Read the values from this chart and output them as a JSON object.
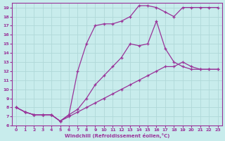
{
  "xlabel": "Windchill (Refroidissement éolien,°C)",
  "xlim": [
    -0.5,
    23.5
  ],
  "ylim": [
    6,
    19.5
  ],
  "xticks": [
    0,
    1,
    2,
    3,
    4,
    5,
    6,
    7,
    8,
    9,
    10,
    11,
    12,
    13,
    14,
    15,
    16,
    17,
    18,
    19,
    20,
    21,
    22,
    23
  ],
  "yticks": [
    6,
    7,
    8,
    9,
    10,
    11,
    12,
    13,
    14,
    15,
    16,
    17,
    18,
    19
  ],
  "bg_color": "#c8ecec",
  "grid_color": "#b0d8d8",
  "line_color": "#993399",
  "line1_x": [
    0,
    1,
    2,
    3,
    4,
    5,
    6,
    7,
    8,
    9,
    10,
    11,
    12,
    13,
    14,
    15,
    16,
    17,
    18,
    19,
    20,
    21,
    22,
    23
  ],
  "line1_y": [
    8,
    7.5,
    7.2,
    7.2,
    7.2,
    6.5,
    7.0,
    7.5,
    8.0,
    8.5,
    9.0,
    9.5,
    10.0,
    10.5,
    11.0,
    11.5,
    12.0,
    12.5,
    12.5,
    13.0,
    12.5,
    12.2,
    12.2,
    12.2
  ],
  "line2_x": [
    0,
    1,
    2,
    3,
    4,
    5,
    6,
    7,
    8,
    9,
    10,
    11,
    12,
    13,
    14,
    15,
    16,
    17,
    18,
    19,
    20,
    21,
    22,
    23
  ],
  "line2_y": [
    8,
    7.5,
    7.2,
    7.2,
    7.2,
    6.5,
    7.2,
    7.8,
    9.0,
    10.5,
    11.5,
    12.5,
    13.5,
    15.0,
    14.8,
    15.0,
    17.5,
    14.5,
    13.0,
    12.5,
    12.2,
    12.2,
    12.2,
    12.2
  ],
  "line3_x": [
    0,
    1,
    2,
    3,
    4,
    5,
    6,
    7,
    8,
    9,
    10,
    11,
    12,
    13,
    14,
    15,
    16,
    17,
    18,
    19,
    20,
    21,
    22,
    23
  ],
  "line3_y": [
    8,
    7.5,
    7.2,
    7.2,
    7.2,
    6.5,
    7.2,
    12.0,
    15.0,
    17.0,
    17.2,
    17.2,
    17.5,
    18.0,
    19.2,
    19.2,
    19.0,
    18.5,
    18.0,
    19.0,
    19.0,
    19.0,
    19.0,
    19.0
  ]
}
